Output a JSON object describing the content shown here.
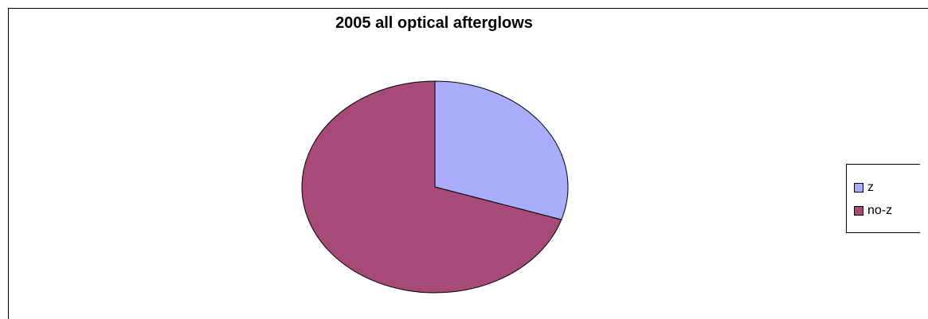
{
  "chart_data": {
    "type": "pie",
    "title": "2005 all optical afterglows",
    "slices": [
      {
        "label": "z",
        "value": 30,
        "color": "#A9ADFC"
      },
      {
        "label": "no-z",
        "value": 70,
        "color": "#A84A77"
      }
    ],
    "legend_position": "right",
    "start_angle_deg": 0,
    "direction": "clockwise"
  }
}
